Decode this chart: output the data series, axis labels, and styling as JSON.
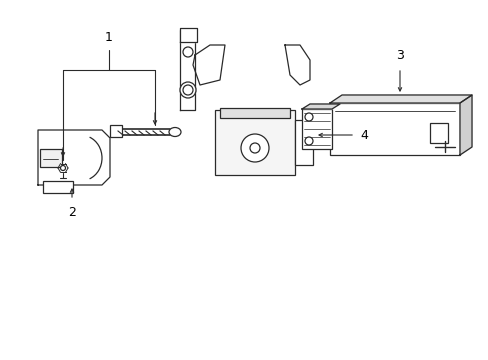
{
  "bg_color": "#ffffff",
  "line_color": "#2a2a2a",
  "label_color": "#000000",
  "fig_width": 4.89,
  "fig_height": 3.6,
  "dpi": 100,
  "label_fontsize": 9,
  "lw": 0.9
}
